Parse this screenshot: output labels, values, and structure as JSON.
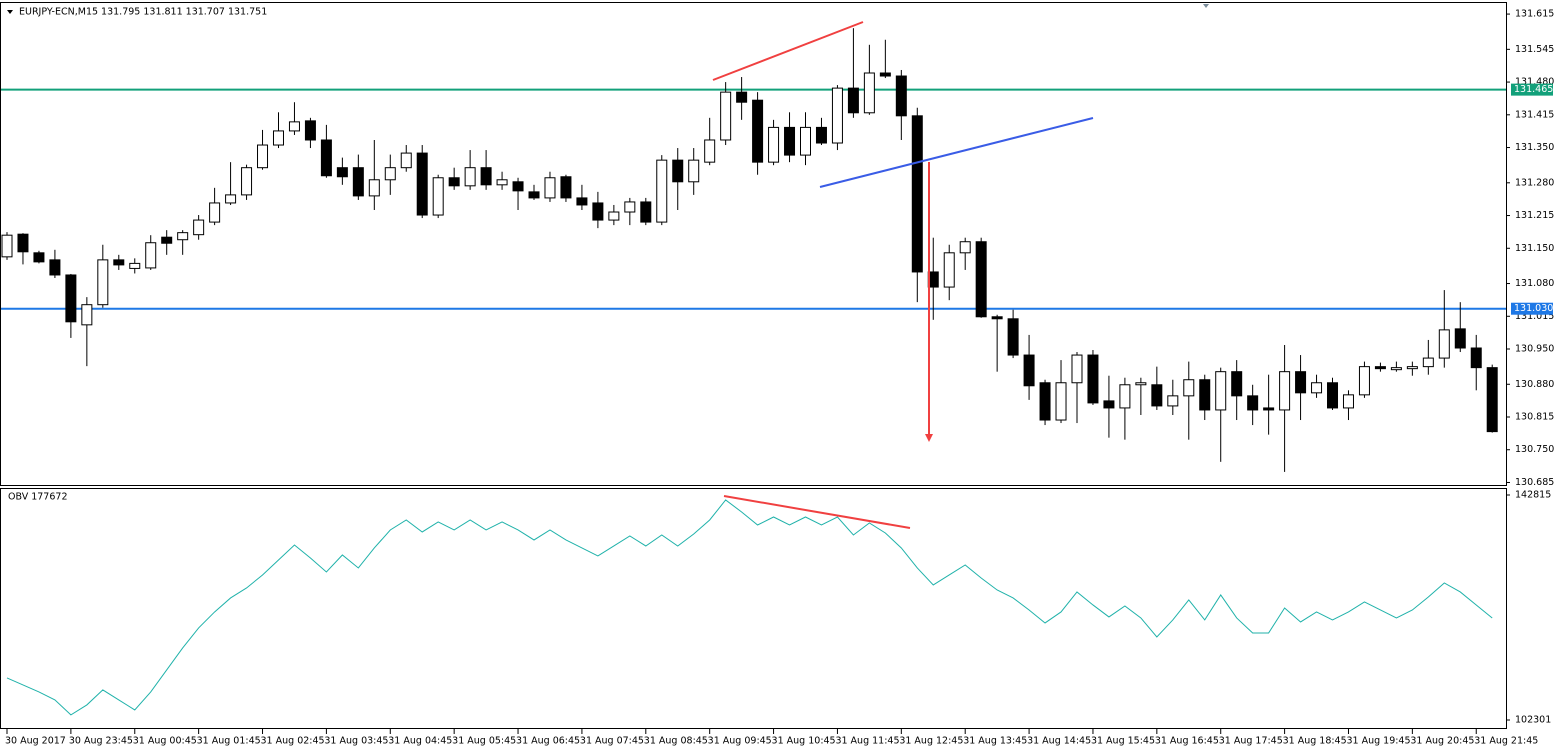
{
  "chart_data": [
    {
      "type": "candlestick",
      "title": "EURJPY-ECN,M15 131.795 131.811 131.707 131.751",
      "categories": [
        "30 Aug 2017",
        null,
        null,
        null,
        "30 Aug 23:45",
        null,
        null,
        null,
        "31 Aug 00:45",
        null,
        null,
        null,
        "31 Aug 01:45",
        null,
        null,
        null,
        "31 Aug 02:45",
        null,
        null,
        null,
        "31 Aug 03:45",
        null,
        null,
        null,
        "31 Aug 04:45",
        null,
        null,
        null,
        "31 Aug 05:45",
        null,
        null,
        null,
        "31 Aug 06:45",
        null,
        null,
        null,
        "31 Aug 07:45",
        null,
        null,
        null,
        "31 Aug 08:45",
        null,
        null,
        null,
        "31 Aug 09:45",
        null,
        null,
        null,
        "31 Aug 10:45",
        null,
        null,
        null,
        "31 Aug 11:45",
        null,
        null,
        null,
        "31 Aug 12:45",
        null,
        null,
        null,
        "31 Aug 13:45",
        null,
        null,
        null,
        "31 Aug 14:45",
        null,
        null,
        null,
        "31 Aug 15:45",
        null,
        null,
        null,
        "31 Aug 16:45",
        null,
        null,
        null,
        "31 Aug 17:45",
        null,
        null,
        null,
        "31 Aug 18:45",
        null,
        null,
        null,
        "31 Aug 19:45",
        null,
        null,
        null,
        "31 Aug 20:45",
        null,
        null,
        null,
        "31 Aug 21:45",
        null
      ],
      "open": [
        131.133,
        131.178,
        131.141,
        131.127,
        131.097,
        130.998,
        131.038,
        131.127,
        131.11,
        131.111,
        131.172,
        131.167,
        131.177,
        131.202,
        131.24,
        131.256,
        131.31,
        131.355,
        131.383,
        131.403,
        131.365,
        131.31,
        131.31,
        131.254,
        131.286,
        131.31,
        131.339,
        131.216,
        131.29,
        131.274,
        131.31,
        131.276,
        131.282,
        131.262,
        131.25,
        131.292,
        131.25,
        131.24,
        131.206,
        131.222,
        131.242,
        131.202,
        131.325,
        131.282,
        131.321,
        131.365,
        131.46,
        131.444,
        131.321,
        131.39,
        131.335,
        131.39,
        131.359,
        131.468,
        131.419,
        131.498,
        131.492,
        131.413,
        131.103,
        131.073,
        131.141,
        131.163,
        131.014,
        131.01,
        130.938,
        130.883,
        130.809,
        130.883,
        130.938,
        130.847,
        130.833,
        130.879,
        130.879,
        130.837,
        130.857,
        130.889,
        130.829,
        130.905,
        130.857,
        130.833,
        130.829,
        130.905,
        130.863,
        130.883,
        130.833,
        130.859,
        130.915,
        130.909,
        130.911,
        130.915,
        130.932,
        130.99,
        130.952,
        130.913
      ],
      "high": [
        131.182,
        131.18,
        131.145,
        131.147,
        131.099,
        131.053,
        131.157,
        131.137,
        131.13,
        131.176,
        131.186,
        131.186,
        131.216,
        131.27,
        131.321,
        131.316,
        131.385,
        131.42,
        131.44,
        131.409,
        131.395,
        131.33,
        131.336,
        131.365,
        131.336,
        131.355,
        131.355,
        131.296,
        131.31,
        131.345,
        131.345,
        131.302,
        131.29,
        131.276,
        131.302,
        131.296,
        131.276,
        131.262,
        131.236,
        131.25,
        131.25,
        131.335,
        131.349,
        131.349,
        131.409,
        131.48,
        131.49,
        131.46,
        131.405,
        131.42,
        131.42,
        131.409,
        131.474,
        131.587,
        131.554,
        131.564,
        131.504,
        131.429,
        131.171,
        131.157,
        131.171,
        131.171,
        131.018,
        131.028,
        130.978,
        130.889,
        130.928,
        130.944,
        130.948,
        130.897,
        130.893,
        130.893,
        130.915,
        130.889,
        130.925,
        130.899,
        130.913,
        130.928,
        130.879,
        130.899,
        130.958,
        130.938,
        130.899,
        130.893,
        130.868,
        130.925,
        130.923,
        130.925,
        130.925,
        130.968,
        131.067,
        131.043,
        130.978,
        130.919
      ],
      "low": [
        131.127,
        131.118,
        131.12,
        131.091,
        130.972,
        130.916,
        131.032,
        131.107,
        131.1,
        131.107,
        131.137,
        131.137,
        131.167,
        131.196,
        131.236,
        131.246,
        131.306,
        131.349,
        131.375,
        131.349,
        131.29,
        131.276,
        131.246,
        131.226,
        131.256,
        131.302,
        131.21,
        131.21,
        131.266,
        131.266,
        131.266,
        131.266,
        131.226,
        131.246,
        131.242,
        131.242,
        131.226,
        131.19,
        131.196,
        131.196,
        131.196,
        131.196,
        131.226,
        131.256,
        131.315,
        131.355,
        131.405,
        131.296,
        131.315,
        131.321,
        131.315,
        131.355,
        131.345,
        131.409,
        131.415,
        131.488,
        131.365,
        131.043,
        131.008,
        131.047,
        131.107,
        131.012,
        130.905,
        130.932,
        130.849,
        130.799,
        130.803,
        130.803,
        130.839,
        130.774,
        130.77,
        130.819,
        130.829,
        130.819,
        130.77,
        130.809,
        130.726,
        130.809,
        130.799,
        130.78,
        130.706,
        130.809,
        130.853,
        130.829,
        130.809,
        130.853,
        130.905,
        130.905,
        130.897,
        130.899,
        130.913,
        130.944,
        130.868,
        130.784
      ],
      "close": [
        131.176,
        131.143,
        131.123,
        131.097,
        131.004,
        131.038,
        131.127,
        131.117,
        131.12,
        131.161,
        131.16,
        131.181,
        131.206,
        131.24,
        131.256,
        131.31,
        131.355,
        131.383,
        131.401,
        131.365,
        131.294,
        131.292,
        131.254,
        131.286,
        131.31,
        131.339,
        131.216,
        131.29,
        131.274,
        131.31,
        131.276,
        131.286,
        131.264,
        131.25,
        131.29,
        131.25,
        131.236,
        131.206,
        131.222,
        131.242,
        131.202,
        131.325,
        131.282,
        131.325,
        131.365,
        131.46,
        131.44,
        131.321,
        131.39,
        131.335,
        131.39,
        131.359,
        131.468,
        131.419,
        131.498,
        131.492,
        131.413,
        131.103,
        131.073,
        131.141,
        131.163,
        131.014,
        131.01,
        130.938,
        130.877,
        130.809,
        130.883,
        130.938,
        130.843,
        130.833,
        130.879,
        130.883,
        130.837,
        130.857,
        130.889,
        130.829,
        130.905,
        130.857,
        130.829,
        130.829,
        130.905,
        130.863,
        130.883,
        130.833,
        130.859,
        130.915,
        130.911,
        130.913,
        130.915,
        130.932,
        130.988,
        130.952,
        130.913,
        130.786
      ],
      "up_color": "#ffffff",
      "down_color": "#000000",
      "ylim": [
        130.68,
        131.635
      ],
      "yticks": [
        {
          "value": 131.615,
          "label": "131.615"
        },
        {
          "value": 131.545,
          "label": "131.545"
        },
        {
          "value": 131.48,
          "label": "131.480"
        },
        {
          "value": 131.415,
          "label": "131.415"
        },
        {
          "value": 131.35,
          "label": "131.350"
        },
        {
          "value": 131.28,
          "label": "131.280"
        },
        {
          "value": 131.215,
          "label": "131.215"
        },
        {
          "value": 131.15,
          "label": "131.150"
        },
        {
          "value": 131.08,
          "label": "131.080"
        },
        {
          "value": 131.015,
          "label": "131.015"
        },
        {
          "value": 130.95,
          "label": "130.950"
        },
        {
          "value": 130.88,
          "label": "130.880"
        },
        {
          "value": 130.815,
          "label": "130.815"
        },
        {
          "value": 130.75,
          "label": "130.750"
        },
        {
          "value": 130.685,
          "label": "130.685"
        }
      ],
      "levels": [
        {
          "value": 131.465,
          "label": "131.465",
          "color": "#12a07a"
        },
        {
          "value": 131.03,
          "label": "131.030",
          "color": "#1e78e6"
        }
      ]
    },
    {
      "type": "line",
      "title": "OBV 177672",
      "series": [
        {
          "color": "#20b2aa",
          "values": [
            109875,
            108615,
            107355,
            105915,
            103215,
            105015,
            107715,
            105915,
            104115,
            107355,
            111315,
            115275,
            118875,
            121755,
            124275,
            126075,
            128415,
            131115,
            133815,
            131475,
            128955,
            132015,
            129675,
            133275,
            136515,
            138315,
            136155,
            137955,
            136515,
            138315,
            136515,
            137955,
            136515,
            134715,
            136515,
            134715,
            133275,
            131835,
            133635,
            135435,
            133635,
            135615,
            133635,
            135795,
            138315,
            141915,
            139755,
            137415,
            138855,
            137415,
            138855,
            137415,
            138855,
            135615,
            137775,
            135975,
            133275,
            129675,
            126615,
            128415,
            130215,
            127875,
            125715,
            124275,
            122115,
            119775,
            121755,
            125355,
            123015,
            120855,
            122835,
            120675,
            117255,
            120315,
            123915,
            120315,
            124815,
            120675,
            117975,
            117975,
            122475,
            119955,
            121755,
            120315,
            121755,
            123555,
            122115,
            120675,
            122115,
            124455,
            126975,
            125355,
            123015,
            120675
          ]
        }
      ],
      "ylim": [
        100860,
        143715
      ],
      "yticks": [
        142815,
        102301
      ]
    }
  ]
}
